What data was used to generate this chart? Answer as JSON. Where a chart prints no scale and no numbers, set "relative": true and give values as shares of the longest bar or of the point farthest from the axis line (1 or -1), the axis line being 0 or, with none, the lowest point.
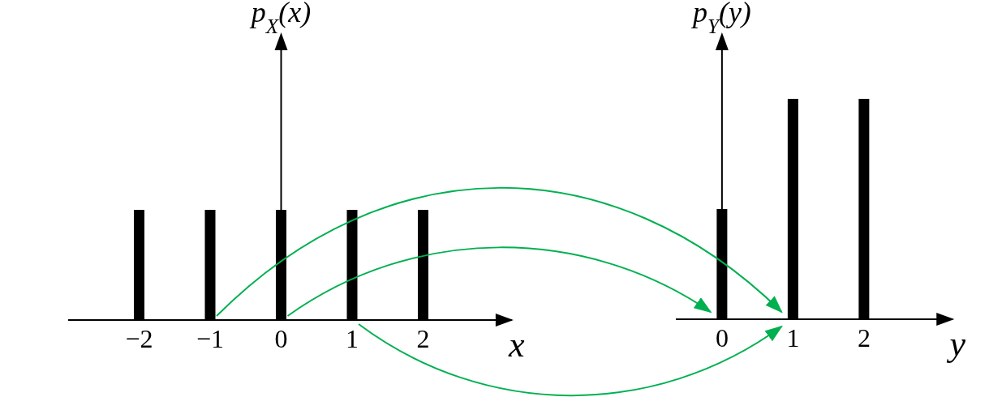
{
  "chart_data": [
    {
      "type": "bar",
      "relative": true,
      "ylabel": "p$_{X}$(x)",
      "xlabel": "x",
      "x": [
        -2,
        -1,
        0,
        1,
        2
      ],
      "values": [
        1,
        1,
        1,
        1,
        1
      ],
      "color": "#000000",
      "xlim": [
        -3,
        3.25
      ],
      "xticks": [
        {
          "value": -2,
          "label": "−2"
        },
        {
          "value": -1,
          "label": "−1"
        },
        0,
        1,
        2
      ],
      "tick_labels": "x"
    },
    {
      "type": "bar",
      "relative": true,
      "ylabel": "p$_{Y}$(y)",
      "xlabel": "y",
      "x": [
        0,
        1,
        2
      ],
      "values": [
        0.5,
        1,
        1
      ],
      "color": "#000000",
      "xlim": [
        -0.65,
        3.25
      ],
      "xticks": [
        0,
        1,
        2
      ],
      "tick_labels": "x"
    }
  ]
}
